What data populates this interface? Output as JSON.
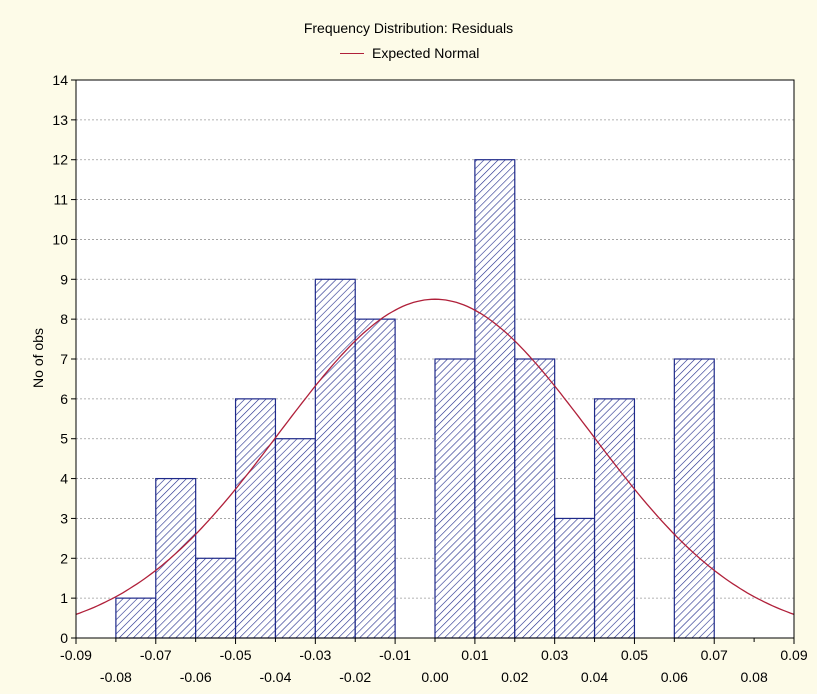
{
  "chart_data": {
    "type": "bar",
    "title": "Frequency Distribution: Residuals",
    "legend": [
      {
        "name": "Expected Normal",
        "color": "#b0203a"
      }
    ],
    "xlabel": "",
    "ylabel": "No of obs",
    "xlim": [
      -0.09,
      0.09
    ],
    "ylim": [
      0,
      14
    ],
    "yticks": [
      0,
      1,
      2,
      3,
      4,
      5,
      6,
      7,
      8,
      9,
      10,
      11,
      12,
      13,
      14
    ],
    "xticks_top_row": [
      "-0.09",
      "-0.07",
      "-0.05",
      "-0.03",
      "-0.01",
      "0.01",
      "0.03",
      "0.05",
      "0.07",
      "0.09"
    ],
    "xticks_bottom_row": [
      "-0.08",
      "-0.06",
      "-0.04",
      "-0.02",
      "0.00",
      "0.02",
      "0.04",
      "0.06",
      "0.08"
    ],
    "bin_width": 0.01,
    "bins": [
      {
        "from": -0.08,
        "to": -0.07,
        "count": 1
      },
      {
        "from": -0.07,
        "to": -0.06,
        "count": 4
      },
      {
        "from": -0.06,
        "to": -0.05,
        "count": 2
      },
      {
        "from": -0.05,
        "to": -0.04,
        "count": 6
      },
      {
        "from": -0.04,
        "to": -0.03,
        "count": 5
      },
      {
        "from": -0.03,
        "to": -0.02,
        "count": 9
      },
      {
        "from": -0.02,
        "to": -0.01,
        "count": 8
      },
      {
        "from": -0.01,
        "to": 0.0,
        "count": 0
      },
      {
        "from": 0.0,
        "to": 0.01,
        "count": 7
      },
      {
        "from": 0.01,
        "to": 0.02,
        "count": 12
      },
      {
        "from": 0.02,
        "to": 0.03,
        "count": 7
      },
      {
        "from": 0.03,
        "to": 0.04,
        "count": 3
      },
      {
        "from": 0.04,
        "to": 0.05,
        "count": 6
      },
      {
        "from": 0.05,
        "to": 0.06,
        "count": 0
      },
      {
        "from": 0.06,
        "to": 0.07,
        "count": 7
      }
    ],
    "normal_curve": {
      "name": "Expected Normal",
      "mean": 0.0,
      "peak": 8.5,
      "sd": 0.039
    },
    "grid": true,
    "bar_fill": "hatched",
    "bar_color": "#1f2a8a",
    "curve_color": "#b0203a",
    "background": "#fdfbe8",
    "plot_background": "#ffffff"
  }
}
